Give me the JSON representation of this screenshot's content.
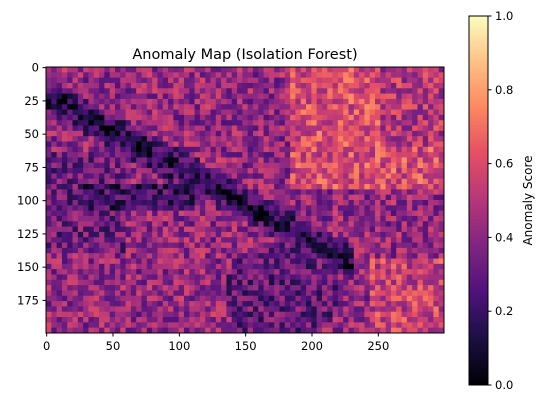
{
  "chart_data": {
    "type": "heatmap",
    "title": "Anomaly Map (Isolation Forest)",
    "xlabel": "",
    "ylabel": "",
    "image_width": 300,
    "image_height": 200,
    "xlim": [
      -0.5,
      299.5
    ],
    "ylim": [
      199.5,
      -0.5
    ],
    "x_ticks": [
      0,
      50,
      100,
      150,
      200,
      250
    ],
    "y_ticks": [
      0,
      25,
      50,
      75,
      100,
      125,
      150,
      175
    ],
    "x_tick_labels": [
      "0",
      "50",
      "100",
      "150",
      "200",
      "250"
    ],
    "y_tick_labels": [
      "0",
      "25",
      "50",
      "75",
      "100",
      "125",
      "150",
      "175"
    ],
    "colormap": "magma",
    "colorbar": {
      "label": "Anomaly Score",
      "min": 0.0,
      "max": 1.0,
      "ticks": [
        0.0,
        0.2,
        0.4,
        0.6,
        0.8,
        1.0
      ],
      "tick_labels": [
        "0.0",
        "0.2",
        "0.4",
        "0.6",
        "0.8",
        "1.0"
      ]
    },
    "grid": false,
    "regions": [
      {
        "name": "upper-left band",
        "approx_score": 0.45
      },
      {
        "name": "dark diagonal channel",
        "approx_score": 0.08
      },
      {
        "name": "upper-right bright area",
        "approx_score": 0.65
      },
      {
        "name": "right side",
        "approx_score": 0.5
      },
      {
        "name": "left-center speckle",
        "approx_score": 0.35
      },
      {
        "name": "lower-center smooth basin",
        "approx_score": 0.3
      },
      {
        "name": "bottom-right",
        "approx_score": 0.55
      }
    ]
  }
}
